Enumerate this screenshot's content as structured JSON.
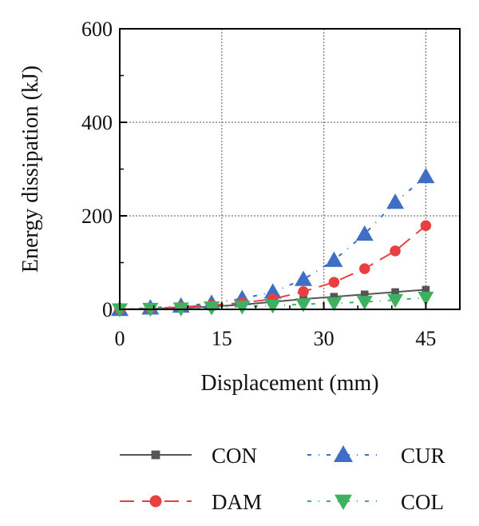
{
  "chart_data": {
    "type": "line",
    "xlabel": "Displacement (mm)",
    "ylabel": "Energy dissipation (kJ)",
    "xlim": [
      0,
      50
    ],
    "ylim": [
      0,
      600
    ],
    "xticks": [
      0,
      15,
      30,
      45
    ],
    "yticks": [
      0,
      200,
      400,
      600
    ],
    "grid": true,
    "legend_position": "bottom",
    "series": [
      {
        "name": "CON",
        "color": "#555555",
        "marker": "square",
        "linestyle": "solid",
        "x": [
          0,
          4.5,
          9,
          13.5,
          18,
          22.5,
          27,
          31.5,
          36,
          40.5,
          45
        ],
        "y": [
          0,
          1,
          3,
          6,
          10,
          16,
          22,
          27,
          32,
          37,
          42
        ]
      },
      {
        "name": "CUR",
        "color": "#3f6fc4",
        "marker": "triangle-up",
        "linestyle": "dashdot",
        "x": [
          0,
          4.5,
          9,
          13.5,
          18,
          22.5,
          27,
          31.5,
          36,
          40.5,
          45
        ],
        "y": [
          0,
          3,
          7,
          13,
          23,
          37,
          64,
          105,
          161,
          229,
          284
        ]
      },
      {
        "name": "DAM",
        "color": "#e84040",
        "marker": "circle",
        "linestyle": "dashed",
        "x": [
          0,
          4.5,
          9,
          13.5,
          18,
          22.5,
          27,
          31.5,
          36,
          40.5,
          45
        ],
        "y": [
          0,
          2,
          5,
          9,
          14,
          22,
          38,
          58,
          87,
          125,
          179
        ]
      },
      {
        "name": "COL",
        "color": "#3fb060",
        "marker": "triangle-down",
        "linestyle": "dashdot",
        "x": [
          0,
          4.5,
          9,
          13.5,
          18,
          22.5,
          27,
          31.5,
          36,
          40.5,
          45
        ],
        "y": [
          0,
          1,
          2,
          4,
          6,
          8,
          11,
          13,
          16,
          20,
          25
        ]
      }
    ]
  }
}
